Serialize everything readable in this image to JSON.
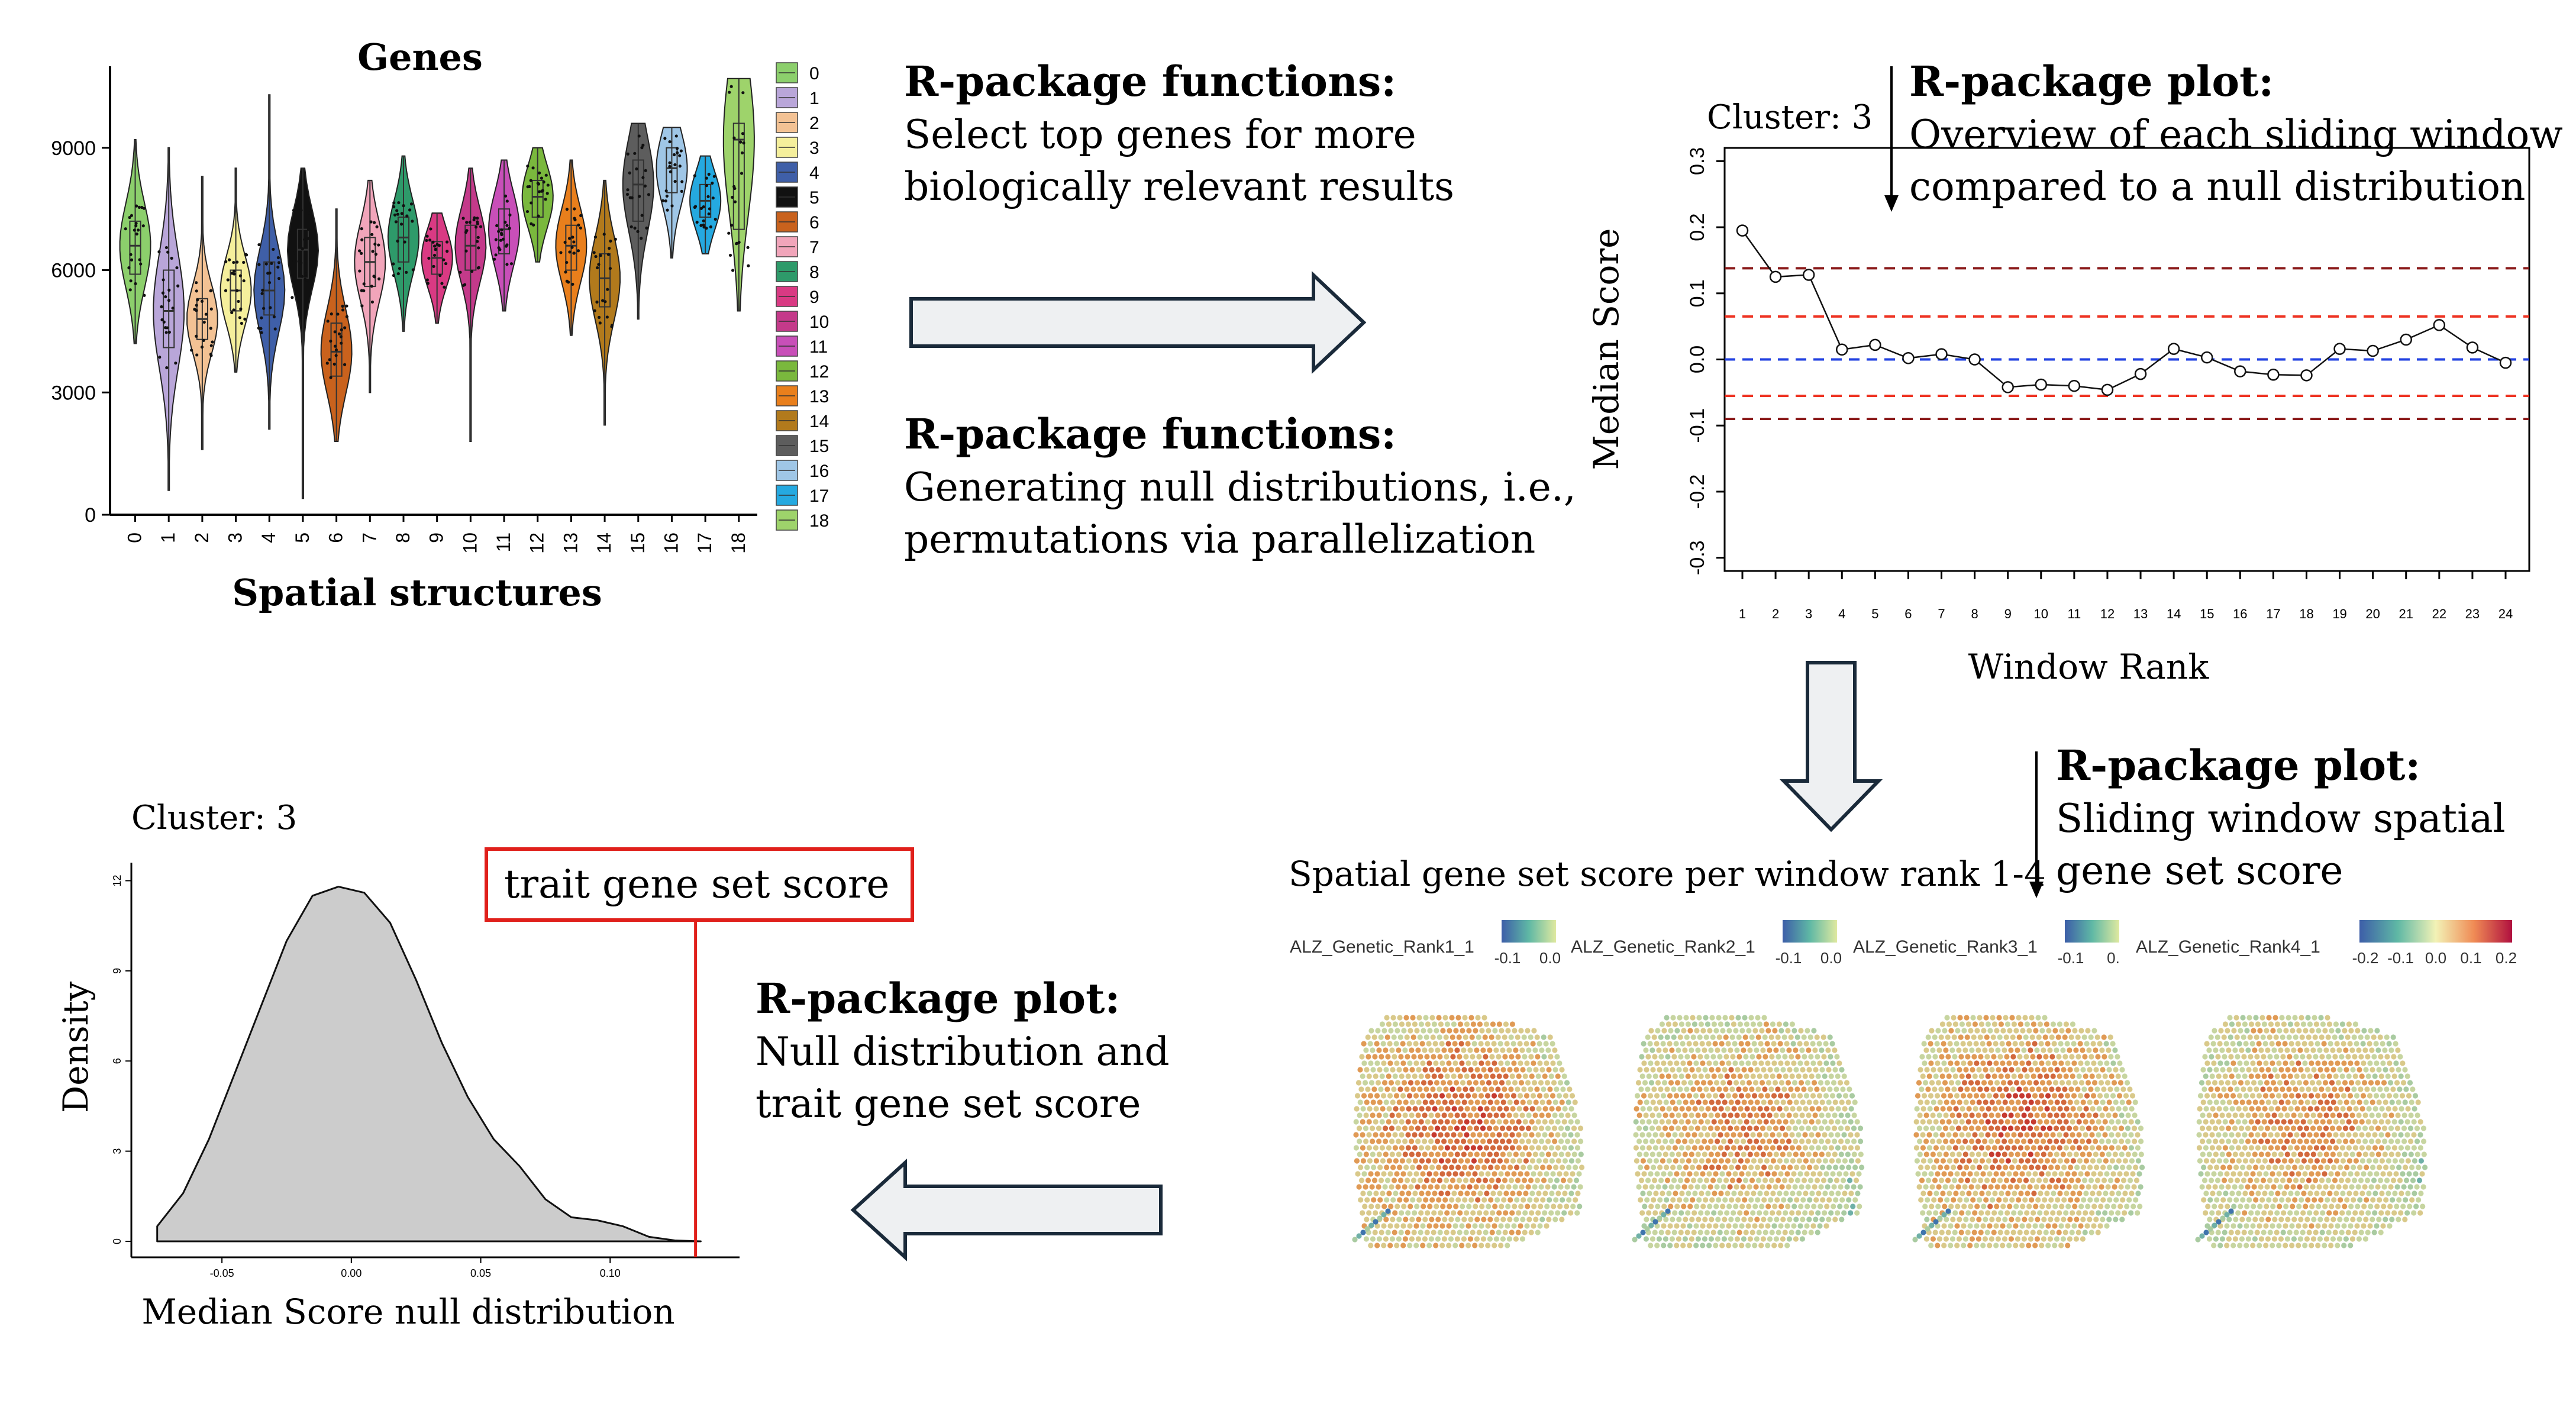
{
  "texts": {
    "fn1_title": "R-package functions:",
    "fn1_line1": "Select top genes for more",
    "fn1_line2": "biologically relevant results",
    "fn2_title": "R-package functions:",
    "fn2_line1": "Generating null distributions, i.e.,",
    "fn2_line2": "permutations via parallelization",
    "plot1_title": "R-package plot:",
    "plot1_line1": "Overview of each sliding window",
    "plot1_line2": "compared to a null distribution",
    "plot2_title": "R-package plot:",
    "plot2_line1": "Sliding window spatial",
    "plot2_line2": "gene set score",
    "plot3_title": "R-package plot:",
    "plot3_line1": "Null distribution and",
    "plot3_line2": "trait gene set score",
    "spatial_header": "Spatial gene set score per window rank 1-4",
    "trait_box": "trait gene set score"
  },
  "colors": {
    "arrow_fill": "#eef0f2",
    "arrow_stroke": "#1a2a3a",
    "trait_red": "#e0201b",
    "density_fill": "#cccccc"
  },
  "chart_data": [
    {
      "type": "violin",
      "title": "Genes",
      "xlabel": "Spatial structures",
      "ylabel": "",
      "categories": [
        "0",
        "1",
        "2",
        "3",
        "4",
        "5",
        "6",
        "7",
        "8",
        "9",
        "10",
        "11",
        "12",
        "13",
        "14",
        "15",
        "16",
        "17",
        "18"
      ],
      "medians": [
        6600,
        5000,
        4800,
        5500,
        5500,
        6500,
        4000,
        6200,
        6800,
        6300,
        6600,
        7000,
        7800,
        6600,
        5800,
        8100,
        8500,
        7700,
        9200
      ],
      "q1": [
        5900,
        4100,
        4300,
        5000,
        4900,
        5800,
        3400,
        5600,
        6200,
        5900,
        6000,
        6400,
        7300,
        6000,
        5100,
        7200,
        7900,
        7300,
        7000
      ],
      "q3": [
        7200,
        6000,
        5300,
        6000,
        6200,
        7000,
        4700,
        6800,
        7300,
        6700,
        7100,
        7500,
        8200,
        7100,
        6400,
        8700,
        9000,
        8100,
        9600
      ],
      "mins": [
        4200,
        600,
        1600,
        3500,
        2100,
        400,
        1800,
        3000,
        4500,
        4700,
        1800,
        5000,
        6200,
        4400,
        2200,
        4800,
        6300,
        6400,
        5000
      ],
      "maxs": [
        9200,
        9000,
        8300,
        8500,
        10300,
        8500,
        7500,
        8200,
        8800,
        7400,
        8500,
        8700,
        9000,
        8700,
        8200,
        9600,
        9500,
        8800,
        10700
      ],
      "yticks": [
        "0",
        "3000",
        "6000",
        "9000"
      ],
      "ytick_values": [
        0,
        3000,
        6000,
        9000
      ],
      "ylim": [
        0,
        11000
      ],
      "legend": [
        "0",
        "1",
        "2",
        "3",
        "4",
        "5",
        "6",
        "7",
        "8",
        "9",
        "10",
        "11",
        "12",
        "13",
        "14",
        "15",
        "16",
        "17",
        "18"
      ],
      "palette": [
        "#8ccf6c",
        "#b9a6d9",
        "#f3c294",
        "#f5ef9c",
        "#3f5fa8",
        "#111111",
        "#c9621d",
        "#f1a5ba",
        "#2e9a6a",
        "#d93a83",
        "#c43a8a",
        "#c84fb8",
        "#7ab83d",
        "#e97f1c",
        "#b27a1c",
        "#5d5d5d",
        "#9fc6e6",
        "#25a9e0",
        "#9ed36b"
      ]
    },
    {
      "type": "line",
      "title": "Cluster: 3",
      "xlabel": "Window Rank",
      "ylabel": "Median Score",
      "x": [
        "1",
        "2",
        "3",
        "4",
        "5",
        "6",
        "7",
        "8",
        "9",
        "10",
        "11",
        "12",
        "13",
        "14",
        "15",
        "16",
        "17",
        "18",
        "19",
        "20",
        "21",
        "22",
        "23",
        "24"
      ],
      "values": [
        0.195,
        0.125,
        0.128,
        0.015,
        0.022,
        0.002,
        0.008,
        0.0,
        -0.042,
        -0.038,
        -0.04,
        -0.046,
        -0.022,
        0.016,
        0.003,
        -0.018,
        -0.023,
        -0.024,
        0.016,
        0.013,
        0.03,
        0.052,
        0.018,
        -0.005
      ],
      "yticks": [
        "-0.3",
        "-0.2",
        "-0.1",
        "0.0",
        "0.1",
        "0.2",
        "0.3"
      ],
      "ytick_values": [
        -0.3,
        -0.2,
        -0.1,
        0.0,
        0.1,
        0.2,
        0.3
      ],
      "ylim": [
        -0.32,
        0.32
      ],
      "hlines": [
        {
          "y": 0.138,
          "color": "#8b1a1a"
        },
        {
          "y": 0.065,
          "color": "#ee3322"
        },
        {
          "y": 0.0,
          "color": "#1f3fe0"
        },
        {
          "y": -0.055,
          "color": "#ee3322"
        },
        {
          "y": -0.09,
          "color": "#8b1a1a"
        }
      ]
    },
    {
      "type": "spatial",
      "title": "Spatial gene set score per window rank 1-4",
      "panels": [
        {
          "label": "ALZ_Genetic_Rank1_1",
          "ticks": [
            "-0.1",
            "0.0"
          ]
        },
        {
          "label": "ALZ_Genetic_Rank2_1",
          "ticks": [
            "-0.1",
            "0.0"
          ]
        },
        {
          "label": "ALZ_Genetic_Rank3_1",
          "ticks": [
            "-0.1",
            "0."
          ]
        },
        {
          "label": "ALZ_Genetic_Rank4_1",
          "ticks": [
            "-0.2",
            "-0.1",
            "0.0",
            "0.1",
            "0.2"
          ]
        }
      ]
    },
    {
      "type": "area",
      "title": "Cluster: 3",
      "xlabel": "Median Score null distribution",
      "ylabel": "Density",
      "x": [
        -0.075,
        -0.065,
        -0.055,
        -0.045,
        -0.035,
        -0.025,
        -0.015,
        -0.005,
        0.005,
        0.015,
        0.025,
        0.035,
        0.045,
        0.055,
        0.065,
        0.075,
        0.085,
        0.095,
        0.105,
        0.115,
        0.125,
        0.135
      ],
      "values": [
        0.5,
        1.6,
        3.4,
        5.6,
        7.8,
        10.0,
        11.5,
        11.8,
        11.6,
        10.6,
        8.7,
        6.6,
        4.8,
        3.4,
        2.5,
        1.4,
        0.8,
        0.7,
        0.5,
        0.15,
        0.03,
        0.0
      ],
      "xticks": [
        "-0.05",
        "0.00",
        "0.05",
        "0.10"
      ],
      "xtick_values": [
        -0.05,
        0.0,
        0.05,
        0.1
      ],
      "yticks": [
        "0",
        "3",
        "6",
        "9",
        "12"
      ],
      "ytick_values": [
        0,
        3,
        6,
        9,
        12
      ],
      "xlim": [
        -0.085,
        0.15
      ],
      "ylim": [
        0,
        12.6
      ],
      "trait_score": 0.133,
      "annotation": "trait gene set score"
    }
  ]
}
